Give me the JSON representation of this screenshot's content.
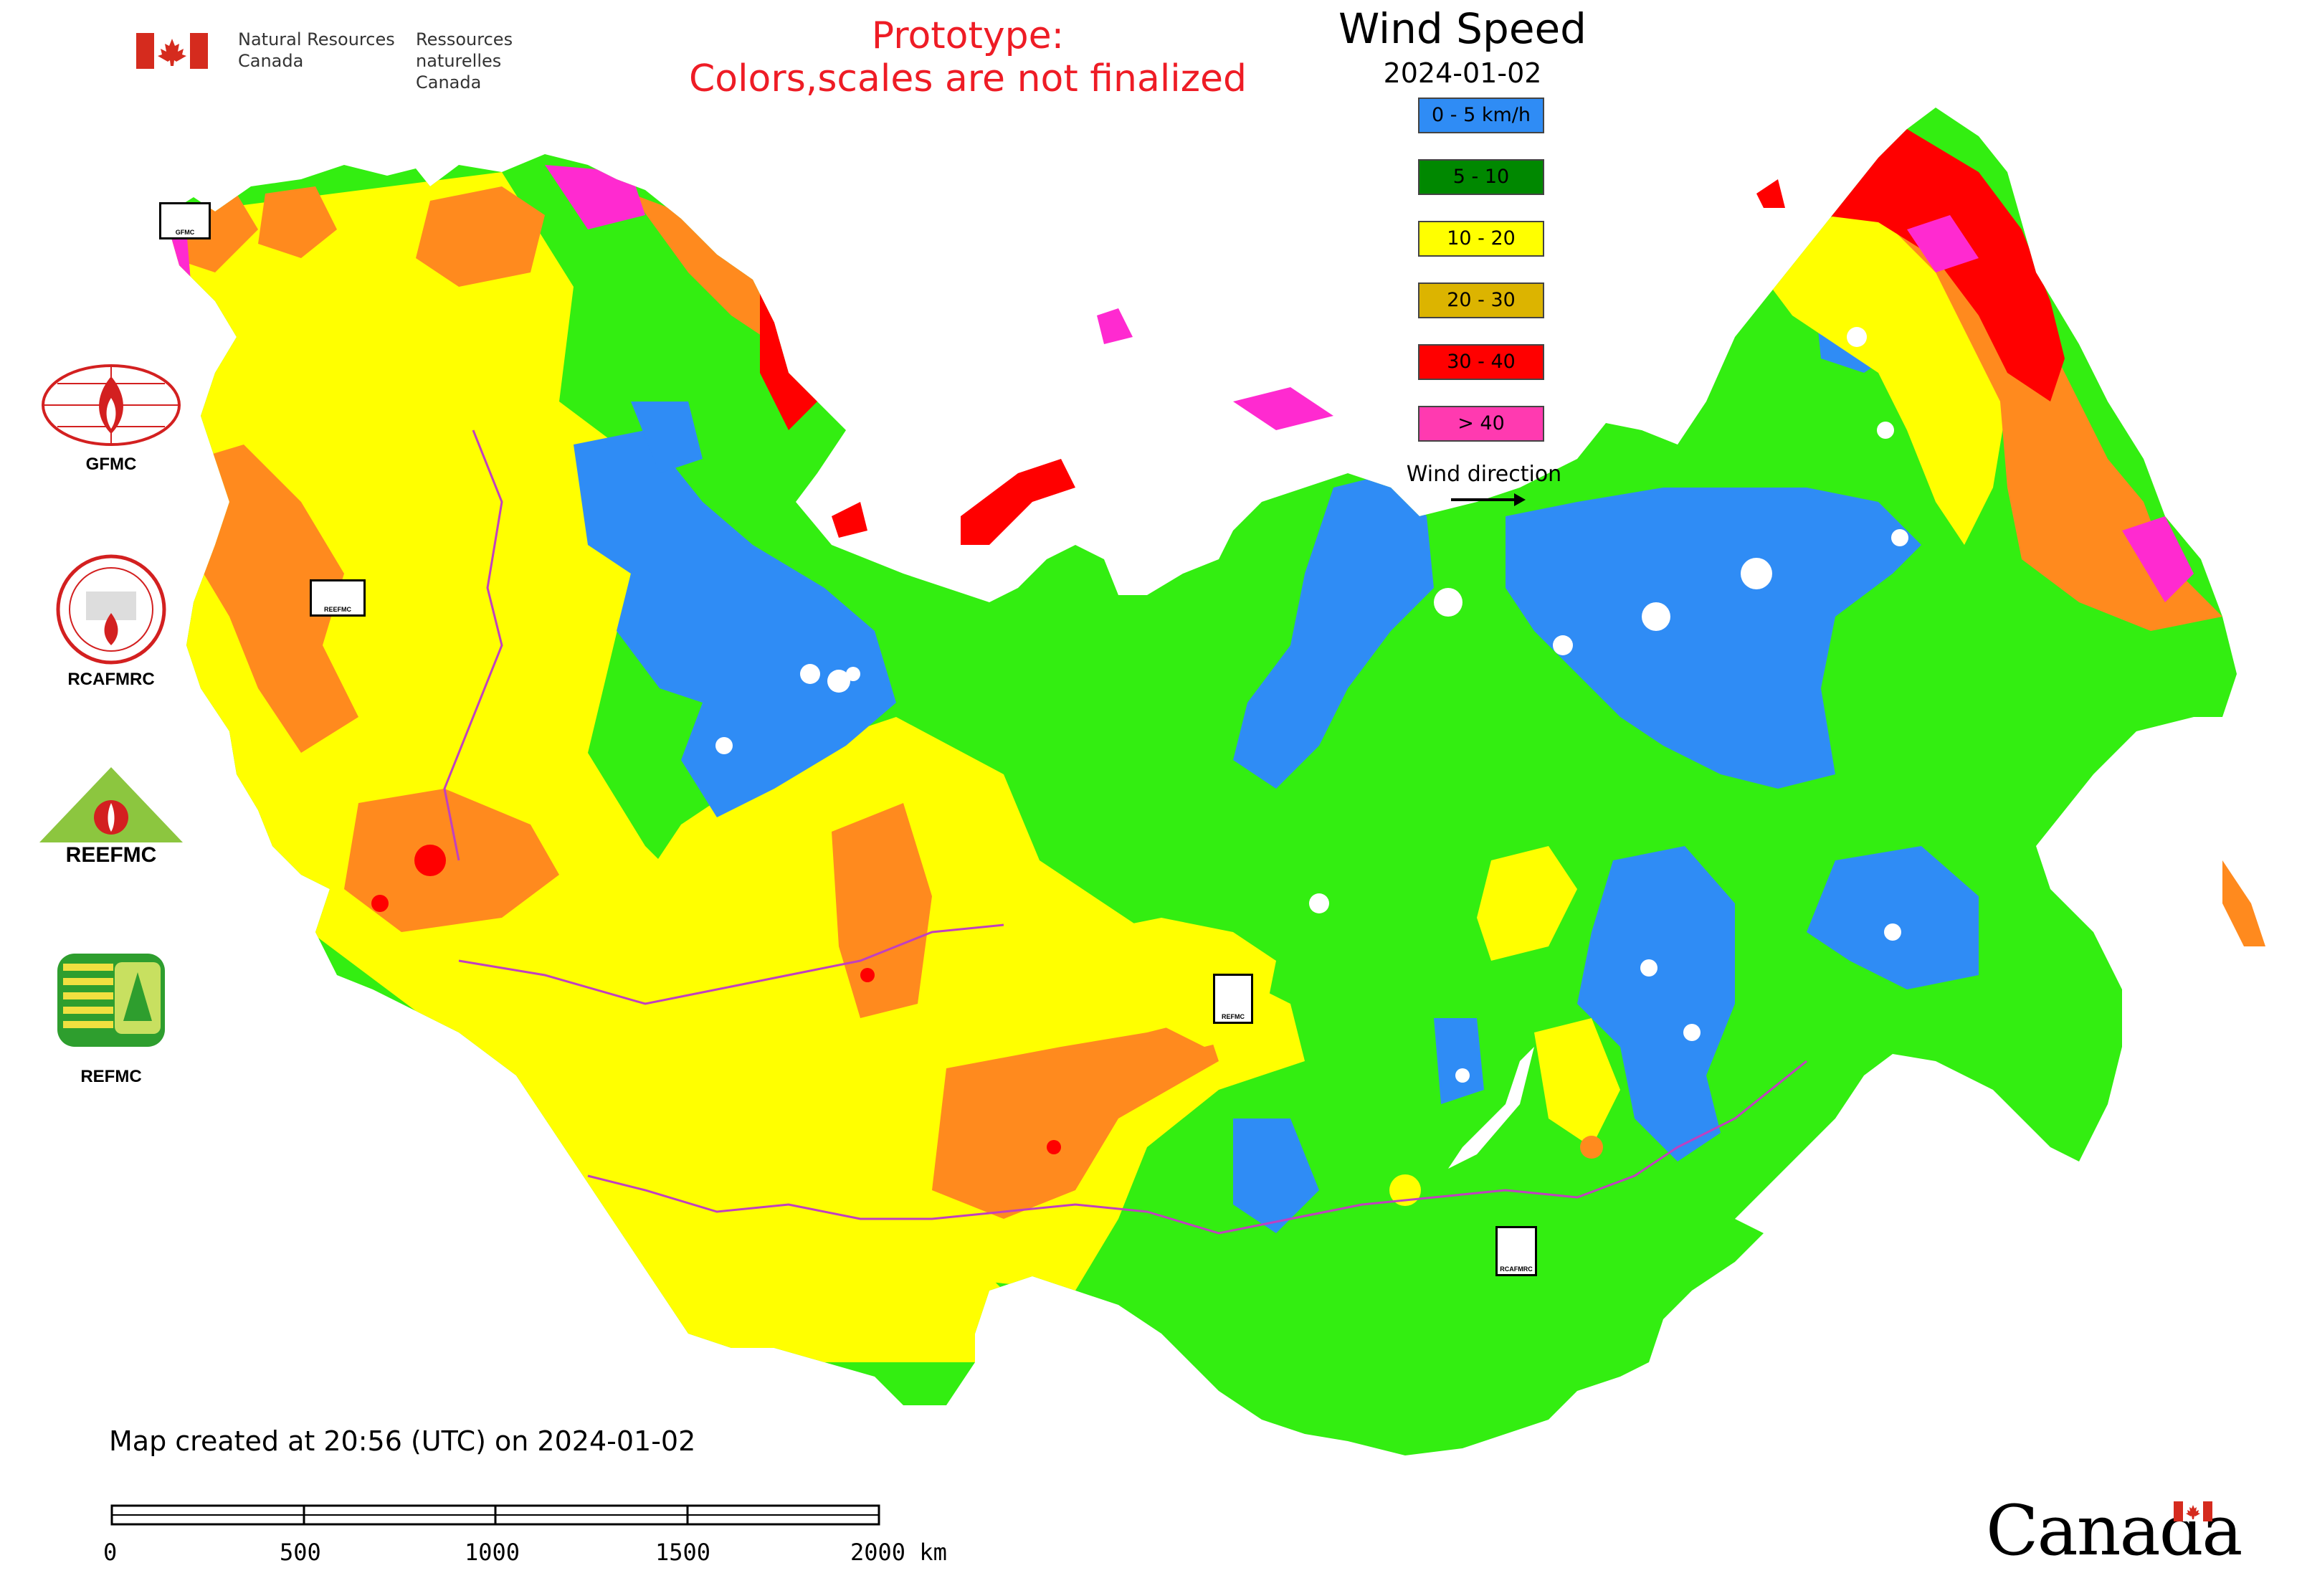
{
  "header": {
    "dept_en_line1": "Natural Resources",
    "dept_en_line2": "Canada",
    "dept_fr_line1": "Ressources naturelles",
    "dept_fr_line2": "Canada",
    "prototype_line1": "Prototype:",
    "prototype_line2": "Colors,scales are not finalized"
  },
  "legend": {
    "title": "Wind Speed",
    "date": "2024-01-02",
    "items": [
      {
        "label": "0 - 5 km/h",
        "color": "#2f8cf5"
      },
      {
        "label": "5 - 10",
        "color": "#008800"
      },
      {
        "label": "10 - 20",
        "color": "#ffff00"
      },
      {
        "label": "20 - 30",
        "color": "#dcb400"
      },
      {
        "label": "30 - 40",
        "color": "#ff0000"
      },
      {
        "label": "> 40",
        "color": "#ff3ab0"
      }
    ],
    "wind_direction_label": "Wind direction"
  },
  "map_colors": {
    "low": "#2f8cf5",
    "mid": "#33ee11",
    "high": "#ffff00",
    "orange": "#ff8a1e",
    "red": "#ff0000",
    "magenta": "#ff2ad0",
    "border": "#c040c0"
  },
  "side_logos": [
    {
      "label": "GFMC"
    },
    {
      "label": "RCAFMRC"
    },
    {
      "label": "REEFMC"
    },
    {
      "label": "REFMC"
    }
  ],
  "stations": [
    {
      "label": "GFMC"
    },
    {
      "label": "REEFMC"
    },
    {
      "label": "REFMC"
    },
    {
      "label": "RCAFMRC"
    }
  ],
  "footer": {
    "created": "Map created at 20:56 (UTC) on 2024-01-02",
    "scale_labels": [
      "0",
      "500",
      "1000",
      "1500",
      "2000 km"
    ],
    "wordmark": "Canada"
  }
}
